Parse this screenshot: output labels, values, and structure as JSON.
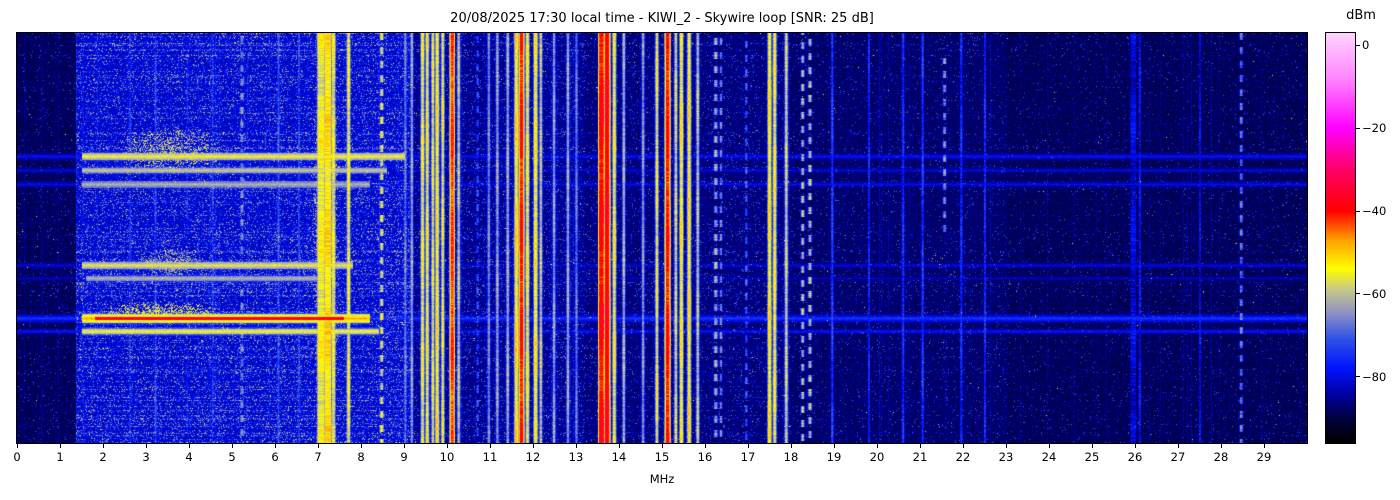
{
  "header": {
    "datetime_local": "20/08/2025 17:30",
    "receiver": "KIWI_2",
    "antenna": "Skywire loop",
    "snr_db": 25
  },
  "chart_data": {
    "type": "heatmap",
    "subtype": "hf-spectrogram-waterfall",
    "title": "20/08/2025 17:30 local time - KIWI_2 - Skywire loop [SNR: 25 dB]",
    "xlabel": "MHz",
    "colorbar_label": "dBm",
    "x_range_mhz": [
      0,
      30
    ],
    "x_ticks": [
      0,
      1,
      2,
      3,
      4,
      5,
      6,
      7,
      8,
      9,
      10,
      11,
      12,
      13,
      14,
      15,
      16,
      17,
      18,
      19,
      20,
      21,
      22,
      23,
      24,
      25,
      26,
      27,
      28,
      29
    ],
    "value_range_dbm": [
      -96,
      3
    ],
    "colorbar_ticks": [
      {
        "v": 0,
        "label": "0"
      },
      {
        "v": -20,
        "label": "−20"
      },
      {
        "v": -40,
        "label": "−40"
      },
      {
        "v": -60,
        "label": "−60"
      },
      {
        "v": -80,
        "label": "−80"
      }
    ],
    "colormap_stops": [
      [
        -96,
        "#000000"
      ],
      [
        -90,
        "#000041"
      ],
      [
        -84,
        "#0000a8"
      ],
      [
        -78,
        "#0014ff"
      ],
      [
        -71,
        "#2f52e8"
      ],
      [
        -65,
        "#8a8ec8"
      ],
      [
        -59,
        "#c9c98a"
      ],
      [
        -54,
        "#ffff00"
      ],
      [
        -47,
        "#ffa000"
      ],
      [
        -40,
        "#ff0000"
      ],
      [
        -30,
        "#ff0066"
      ],
      [
        -20,
        "#ff00ff"
      ],
      [
        -8,
        "#ff86ff"
      ],
      [
        3,
        "#ffd4ff"
      ]
    ],
    "noise_bands": [
      {
        "from": 0.0,
        "to": 1.35,
        "floor": -91,
        "speckle": 0.06,
        "yellow": 0.0005
      },
      {
        "from": 1.35,
        "to": 9.2,
        "floor": -84,
        "speckle": 0.38,
        "yellow": 0.012
      },
      {
        "from": 9.2,
        "to": 13.2,
        "floor": -88,
        "speckle": 0.2,
        "yellow": 0.002
      },
      {
        "from": 13.2,
        "to": 18.0,
        "floor": -89,
        "speckle": 0.14,
        "yellow": 0.001
      },
      {
        "from": 18.0,
        "to": 23.0,
        "floor": -90,
        "speckle": 0.08,
        "yellow": 0.0005
      },
      {
        "from": 23.0,
        "to": 30.0,
        "floor": -91,
        "speckle": 0.06,
        "yellow": 0.0003
      }
    ],
    "horizontal_streaks": [
      {
        "y_frac": 0.3,
        "half_thickness": 3,
        "strong_from": 1.5,
        "strong_to": 9.0,
        "strong_level": -57,
        "faint_level": -80
      },
      {
        "y_frac": 0.335,
        "half_thickness": 2,
        "strong_from": 1.5,
        "strong_to": 8.6,
        "strong_level": -61,
        "faint_level": -82
      },
      {
        "y_frac": 0.368,
        "half_thickness": 3,
        "strong_from": 1.5,
        "strong_to": 8.2,
        "strong_level": -63,
        "faint_level": -81
      },
      {
        "y_frac": 0.565,
        "half_thickness": 3,
        "strong_from": 1.5,
        "strong_to": 7.8,
        "strong_level": -58,
        "faint_level": -82
      },
      {
        "y_frac": 0.598,
        "half_thickness": 2,
        "strong_from": 1.6,
        "strong_to": 7.2,
        "strong_level": -63,
        "faint_level": -84
      },
      {
        "y_frac": 0.695,
        "half_thickness": 4,
        "strong_from": 1.5,
        "strong_to": 8.2,
        "strong_level": -50,
        "red_from": 1.8,
        "red_to": 7.6,
        "red_level": -38,
        "faint_level": -76
      },
      {
        "y_frac": 0.728,
        "half_thickness": 2,
        "strong_from": 1.5,
        "strong_to": 8.4,
        "strong_level": -57,
        "faint_level": -80
      }
    ],
    "activity_blobs": [
      {
        "f_from": 2.3,
        "f_to": 4.9,
        "y_frac": 0.285,
        "half_height": 24,
        "level": -60,
        "density": 0.45
      },
      {
        "f_from": 2.7,
        "f_to": 4.4,
        "y_frac": 0.56,
        "half_height": 15,
        "level": -61,
        "density": 0.45
      },
      {
        "f_from": 1.9,
        "f_to": 4.7,
        "y_frac": 0.68,
        "half_height": 12,
        "level": -57,
        "density": 0.5
      },
      {
        "f_from": 6.8,
        "f_to": 7.5,
        "y_frac": 0.5,
        "half_height": 205,
        "level": -62,
        "density": 0.3
      }
    ],
    "signals": [
      {
        "f": 2.62,
        "w": 0.03,
        "level": -76
      },
      {
        "f": 3.21,
        "w": 0.03,
        "level": -73
      },
      {
        "f": 3.95,
        "w": 0.03,
        "level": -77
      },
      {
        "f": 4.54,
        "w": 0.03,
        "level": -75
      },
      {
        "f": 5.22,
        "w": 0.05,
        "level": -66,
        "dash": true
      },
      {
        "f": 6.07,
        "w": 0.03,
        "level": -71
      },
      {
        "f": 6.55,
        "w": 0.03,
        "level": -74
      },
      {
        "f": 7.06,
        "w": 0.14,
        "level": -55
      },
      {
        "f": 7.22,
        "w": 0.12,
        "level": -52
      },
      {
        "f": 7.35,
        "w": 0.05,
        "level": -57
      },
      {
        "f": 7.7,
        "w": 0.04,
        "level": -56
      },
      {
        "f": 8.47,
        "w": 0.04,
        "level": -57,
        "dash": true
      },
      {
        "f": 9.02,
        "w": 0.03,
        "level": -67
      },
      {
        "f": 9.17,
        "w": 0.03,
        "level": -64
      },
      {
        "f": 9.42,
        "w": 0.04,
        "level": -56
      },
      {
        "f": 9.53,
        "w": 0.03,
        "level": -54
      },
      {
        "f": 9.66,
        "w": 0.03,
        "level": -57
      },
      {
        "f": 9.76,
        "w": 0.04,
        "level": -53
      },
      {
        "f": 9.89,
        "w": 0.03,
        "level": -56
      },
      {
        "f": 10.11,
        "w": 0.05,
        "level": -42
      },
      {
        "f": 10.26,
        "w": 0.03,
        "level": -60
      },
      {
        "f": 10.7,
        "w": 0.03,
        "level": -72,
        "dash": true
      },
      {
        "f": 10.96,
        "w": 0.03,
        "level": -66
      },
      {
        "f": 11.16,
        "w": 0.03,
        "level": -63
      },
      {
        "f": 11.4,
        "w": 0.03,
        "level": -62
      },
      {
        "f": 11.6,
        "w": 0.04,
        "level": -52
      },
      {
        "f": 11.72,
        "w": 0.06,
        "level": -40
      },
      {
        "f": 11.86,
        "w": 0.04,
        "level": -55
      },
      {
        "f": 12.05,
        "w": 0.05,
        "level": -54
      },
      {
        "f": 12.17,
        "w": 0.03,
        "level": -60
      },
      {
        "f": 12.48,
        "w": 0.03,
        "level": -64
      },
      {
        "f": 12.8,
        "w": 0.03,
        "level": -63
      },
      {
        "f": 13.0,
        "w": 0.03,
        "level": -67
      },
      {
        "f": 13.58,
        "w": 0.08,
        "level": -38
      },
      {
        "f": 13.71,
        "w": 0.07,
        "level": -36
      },
      {
        "f": 13.88,
        "w": 0.04,
        "level": -55
      },
      {
        "f": 14.1,
        "w": 0.03,
        "level": -62
      },
      {
        "f": 14.55,
        "w": 0.03,
        "level": -65
      },
      {
        "f": 14.87,
        "w": 0.03,
        "level": -56
      },
      {
        "f": 15.12,
        "w": 0.06,
        "level": -40
      },
      {
        "f": 15.31,
        "w": 0.03,
        "level": -58
      },
      {
        "f": 15.44,
        "w": 0.04,
        "level": -54
      },
      {
        "f": 15.62,
        "w": 0.04,
        "level": -53
      },
      {
        "f": 15.82,
        "w": 0.03,
        "level": -60
      },
      {
        "f": 16.24,
        "w": 0.05,
        "level": -63,
        "dash": true
      },
      {
        "f": 16.36,
        "w": 0.03,
        "level": -67,
        "dash": true
      },
      {
        "f": 16.95,
        "w": 0.03,
        "level": -70,
        "dash": true
      },
      {
        "f": 17.49,
        "w": 0.04,
        "level": -53
      },
      {
        "f": 17.61,
        "w": 0.04,
        "level": -55
      },
      {
        "f": 17.88,
        "w": 0.03,
        "level": -58
      },
      {
        "f": 18.26,
        "w": 0.03,
        "level": -60,
        "dash": true
      },
      {
        "f": 18.43,
        "w": 0.04,
        "level": -61,
        "dash": true
      },
      {
        "f": 18.95,
        "w": 0.03,
        "level": -73
      },
      {
        "f": 19.8,
        "w": 0.03,
        "level": -77
      },
      {
        "f": 20.6,
        "w": 0.03,
        "level": -75
      },
      {
        "f": 21.05,
        "w": 0.03,
        "level": -74
      },
      {
        "f": 21.56,
        "w": 0.04,
        "level": -66,
        "dash": true,
        "partial": "top"
      },
      {
        "f": 21.95,
        "w": 0.03,
        "level": -75
      },
      {
        "f": 22.5,
        "w": 0.03,
        "level": -76
      },
      {
        "f": 25.95,
        "w": 0.12,
        "level": -81
      },
      {
        "f": 26.1,
        "w": 0.04,
        "level": -79
      },
      {
        "f": 27.5,
        "w": 0.03,
        "level": -80
      },
      {
        "f": 28.46,
        "w": 0.04,
        "level": -68,
        "dash": true
      }
    ]
  }
}
